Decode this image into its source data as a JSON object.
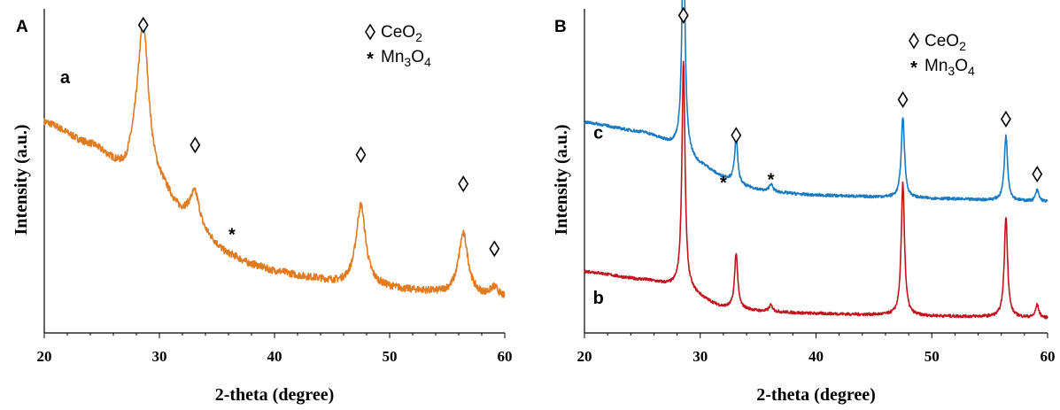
{
  "chart_data": [
    {
      "type": "line",
      "panel_label": "A",
      "xlabel": "2-theta (degree)",
      "ylabel": "Intensity (a.u.)",
      "xlim": [
        20,
        60
      ],
      "ylim": [
        0,
        100
      ],
      "xticks": [
        20,
        30,
        40,
        50,
        60
      ],
      "grid": false,
      "legend": {
        "placement": "top-right",
        "entries": [
          {
            "symbol": "diamond",
            "text": "CeO",
            "sub": "2"
          },
          {
            "symbol": "star",
            "text": "Mn",
            "sub": "3",
            "text2": "O",
            "sub2": "4"
          }
        ]
      },
      "series": [
        {
          "label": "a",
          "color": "#e07b20",
          "baseline": [
            [
              20,
              65
            ],
            [
              24,
              58
            ],
            [
              27,
              50
            ],
            [
              28,
              55
            ],
            [
              30,
              45
            ],
            [
              32,
              36
            ],
            [
              34,
              29
            ],
            [
              36,
              24
            ],
            [
              38,
              21
            ],
            [
              40,
              19
            ],
            [
              43,
              17
            ],
            [
              46,
              15
            ],
            [
              49,
              14
            ],
            [
              52,
              13
            ],
            [
              55,
              12
            ],
            [
              58,
              11
            ],
            [
              60,
              10.5
            ]
          ],
          "peaks": [
            {
              "x": 28.6,
              "h": 43,
              "w": 0.55
            },
            {
              "x": 33.1,
              "h": 11,
              "w": 0.55
            },
            {
              "x": 47.5,
              "h": 25,
              "w": 0.5
            },
            {
              "x": 56.4,
              "h": 19,
              "w": 0.5
            },
            {
              "x": 59.1,
              "h": 3,
              "w": 0.45
            }
          ],
          "noise": 1.1
        }
      ],
      "markers": [
        {
          "type": "diamond",
          "x": 28.6,
          "y": 95
        },
        {
          "type": "diamond",
          "x": 33.1,
          "y": 58
        },
        {
          "type": "star",
          "x": 36.3,
          "y": 31
        },
        {
          "type": "diamond",
          "x": 47.5,
          "y": 55
        },
        {
          "type": "diamond",
          "x": 56.4,
          "y": 46
        },
        {
          "type": "diamond",
          "x": 59.1,
          "y": 26
        }
      ],
      "series_labels": [
        {
          "text": "a",
          "x": 21.8,
          "y": 77
        }
      ]
    },
    {
      "type": "line",
      "panel_label": "B",
      "xlabel": "2-theta (degree)",
      "ylabel": "Intensity (a.u.)",
      "xlim": [
        20,
        60
      ],
      "ylim": [
        0,
        100
      ],
      "xticks": [
        20,
        30,
        40,
        50,
        60
      ],
      "grid": false,
      "legend": {
        "placement": "top-right",
        "entries": [
          {
            "symbol": "diamond",
            "text": "CeO",
            "sub": "2"
          },
          {
            "symbol": "star",
            "text": "Mn",
            "sub": "3",
            "text2": "O",
            "sub2": "4"
          }
        ]
      },
      "series": [
        {
          "label": "b",
          "color": "#c0141e",
          "baseline": [
            [
              20,
              19
            ],
            [
              25,
              16.5
            ],
            [
              28,
              14.5
            ],
            [
              32,
              8
            ],
            [
              36,
              6.5
            ],
            [
              40,
              6
            ],
            [
              45,
              5.6
            ],
            [
              50,
              5.2
            ],
            [
              55,
              5
            ],
            [
              60,
              4.6
            ]
          ],
          "peaks": [
            {
              "x": 28.55,
              "h": 70,
              "w": 0.16
            },
            {
              "x": 33.1,
              "h": 17,
              "w": 0.16
            },
            {
              "x": 36.1,
              "h": 2,
              "w": 0.2
            },
            {
              "x": 47.5,
              "h": 41,
              "w": 0.17
            },
            {
              "x": 56.4,
              "h": 31,
              "w": 0.17
            },
            {
              "x": 59.1,
              "h": 4,
              "w": 0.17
            }
          ],
          "noise": 0.45
        },
        {
          "label": "c",
          "color": "#1a7abf",
          "baseline": [
            [
              20,
              65
            ],
            [
              25,
              62
            ],
            [
              28,
              58
            ],
            [
              30,
              52
            ],
            [
              32,
              48
            ],
            [
              34,
              45
            ],
            [
              36,
              43.5
            ],
            [
              40,
              42.5
            ],
            [
              45,
              42
            ],
            [
              50,
              41.5
            ],
            [
              55,
              41
            ],
            [
              60,
              40.5
            ]
          ],
          "peaks": [
            {
              "x": 28.55,
              "h": 69,
              "w": 0.16
            },
            {
              "x": 33.1,
              "h": 14,
              "w": 0.16
            },
            {
              "x": 36.1,
              "h": 2.5,
              "w": 0.2
            },
            {
              "x": 47.5,
              "h": 25,
              "w": 0.17
            },
            {
              "x": 56.4,
              "h": 20,
              "w": 0.17
            },
            {
              "x": 59.1,
              "h": 3.5,
              "w": 0.17
            }
          ],
          "noise": 0.45
        }
      ],
      "markers": [
        {
          "type": "diamond",
          "x": 28.55,
          "y": 98
        },
        {
          "type": "diamond",
          "x": 33.1,
          "y": 61
        },
        {
          "type": "star",
          "x": 32.0,
          "y": 47
        },
        {
          "type": "star",
          "x": 36.1,
          "y": 48
        },
        {
          "type": "diamond",
          "x": 47.5,
          "y": 72
        },
        {
          "type": "diamond",
          "x": 56.4,
          "y": 66
        },
        {
          "type": "diamond",
          "x": 59.1,
          "y": 49
        }
      ],
      "series_labels": [
        {
          "text": "c",
          "x": 21.2,
          "y": 60
        },
        {
          "text": "b",
          "x": 21.2,
          "y": 9
        }
      ]
    }
  ]
}
